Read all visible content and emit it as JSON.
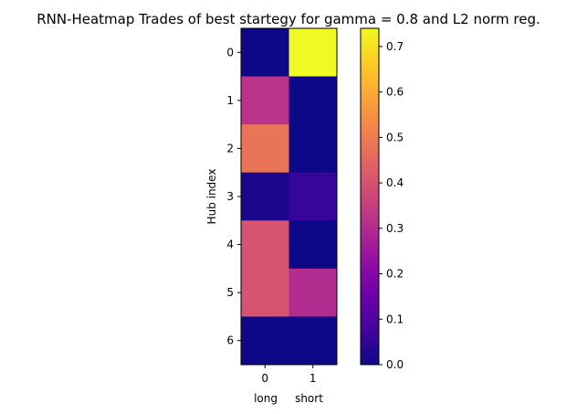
{
  "chart_data": {
    "type": "heatmap",
    "title": "RNN-Heatmap Trades of best startegy for gamma = 0.8 and L2 norm reg.",
    "xlabel": "long     short",
    "ylabel": "Hub index",
    "x_ticks": [
      "0",
      "1"
    ],
    "y_ticks": [
      "0",
      "1",
      "2",
      "3",
      "4",
      "5",
      "6"
    ],
    "values": [
      [
        0.0,
        0.74
      ],
      [
        0.32,
        0.0
      ],
      [
        0.48,
        0.0
      ],
      [
        0.02,
        0.06
      ],
      [
        0.4,
        0.0
      ],
      [
        0.4,
        0.3
      ],
      [
        0.0,
        0.0
      ]
    ],
    "colormap": "plasma",
    "colorbar": {
      "range": [
        0.0,
        0.74
      ],
      "ticks": [
        0.0,
        0.1,
        0.2,
        0.3,
        0.4,
        0.5,
        0.6,
        0.7
      ],
      "tick_labels": [
        "0.0",
        "0.1",
        "0.2",
        "0.3",
        "0.4",
        "0.5",
        "0.6",
        "0.7"
      ]
    }
  }
}
